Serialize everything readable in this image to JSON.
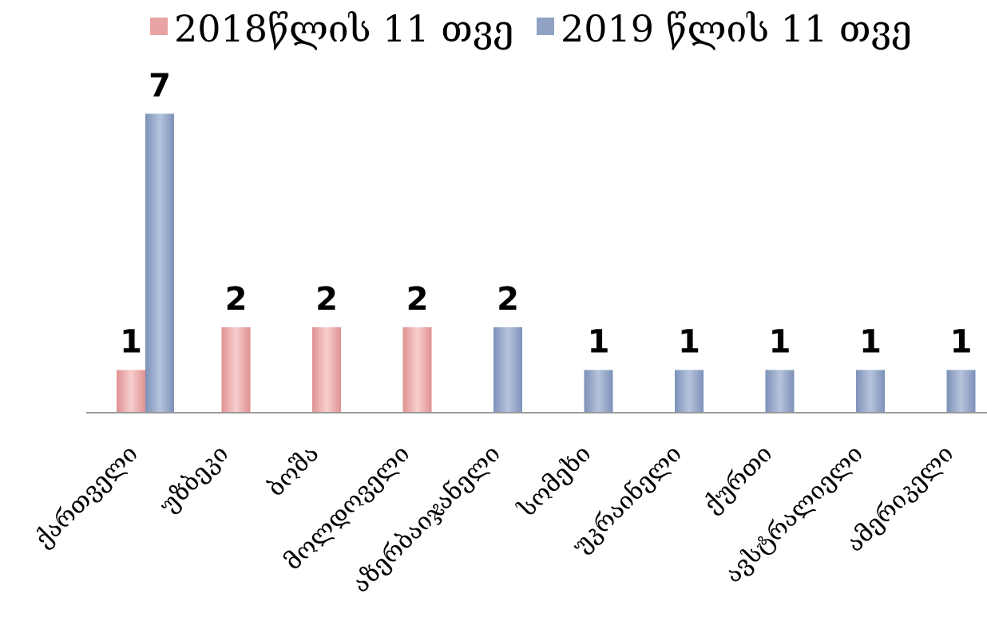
{
  "chart_data": {
    "type": "bar",
    "categories": [
      "ქართველი",
      "უზბეკი",
      "ბოშა",
      "მოლდოველი",
      "აზერბაიჯანელი",
      "სომეხი",
      "უკრაინელი",
      "ქურთი",
      "ავსტრალიელი",
      "ამერიკელი"
    ],
    "series": [
      {
        "name": "2018წლის 11 თვე",
        "values": [
          1,
          2,
          2,
          2,
          0,
          0,
          0,
          0,
          0,
          0
        ]
      },
      {
        "name": "2019 წლის 11 თვე",
        "values": [
          7,
          0,
          0,
          0,
          2,
          1,
          1,
          1,
          1,
          1
        ]
      }
    ],
    "ylim": [
      0,
      7
    ],
    "grid": false,
    "legend_position": "top",
    "data_labels": true,
    "colors": {
      "series_2018": "#e8a3a3",
      "series_2019": "#8fa2c4",
      "axis": "#999999"
    }
  }
}
